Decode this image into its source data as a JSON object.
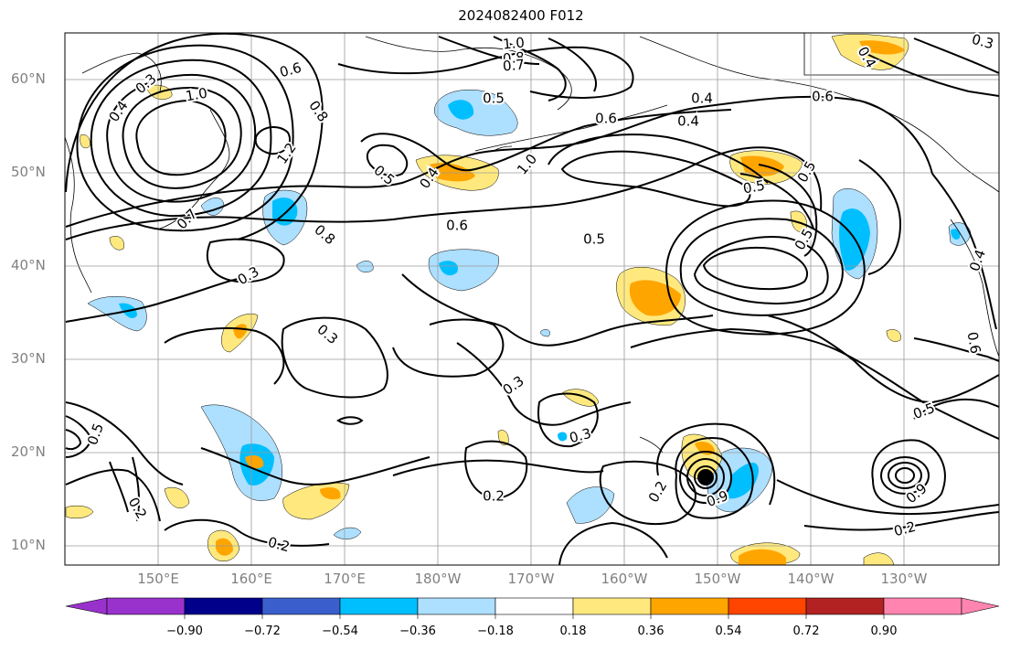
{
  "title": "2024082400 F012",
  "map": {
    "projection": "cylindrical",
    "lat_range": [
      8,
      65
    ],
    "lon_range_east": [
      140,
      240
    ],
    "lat_ticks": [
      "60°N",
      "50°N",
      "40°N",
      "30°N",
      "20°N",
      "10°N"
    ],
    "lon_ticks": [
      "150°E",
      "160°E",
      "170°E",
      "180°W",
      "170°W",
      "160°W",
      "150°W",
      "140°W",
      "130°W"
    ],
    "gridlines": true,
    "contour_labels": [
      "1.0",
      "0.8",
      "0.7",
      "0.6",
      "0.3",
      "0.4",
      "1.0",
      "0.5",
      "0.8",
      "1.2",
      "0.5",
      "0.4",
      "0.7",
      "0.6",
      "0.8",
      "0.5",
      "1.0",
      "0.6",
      "0.5",
      "0.6",
      "0.3",
      "0.4",
      "0.3",
      "0.3",
      "0.3",
      "0.2",
      "0.2",
      "0.2",
      "0.2",
      "0.5",
      "0.5",
      "0.5",
      "0.4",
      "0.5",
      "0.6",
      "0.9",
      "0.9",
      "0.2",
      "0.4",
      "0.3",
      "0.4"
    ]
  },
  "colorbar": {
    "ticks": [
      "−0.90",
      "−0.72",
      "−0.54",
      "−0.36",
      "−0.18",
      "0.18",
      "0.36",
      "0.54",
      "0.72",
      "0.90"
    ],
    "colors": {
      "lt_neg090": "#9932CC",
      "neg090_072": "#00008B",
      "neg072_054": "#3A5FCD",
      "neg054_036": "#00BFFF",
      "neg036_018": "#ADDFFF",
      "neg018_018": "#FFFFFF",
      "p018_036": "#FFE97F",
      "p036_054": "#FFA500",
      "p054_072": "#FF4500",
      "p072_090": "#B22222",
      "gt_090": "#FF85B0"
    }
  }
}
